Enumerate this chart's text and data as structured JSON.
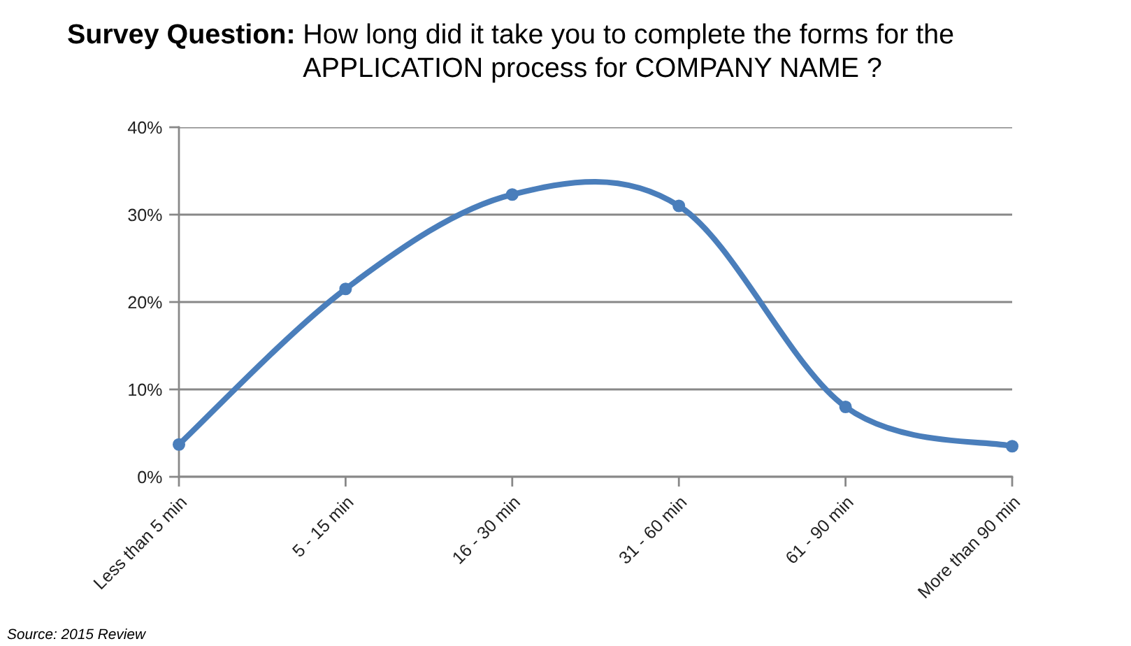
{
  "chart_data": {
    "type": "line",
    "title": "Survey Question:",
    "subtitle": "How long did it take you to complete the forms for the APPLICATION process for COMPANY NAME ?",
    "annotations": [
      "Source: 2015 Review"
    ],
    "categories": [
      "Less than 5 min",
      "5 - 15 min",
      "16 - 30 min",
      "31 - 60 min",
      "61 - 90 min",
      "More than 90 min"
    ],
    "series": [
      {
        "color": "#4a7ebb",
        "values": [
          3.7,
          21.5,
          32.3,
          31.0,
          8.0,
          3.5
        ]
      }
    ],
    "ylim": [
      0,
      40
    ],
    "yticks": [
      {
        "value": 0,
        "label": "0%"
      },
      {
        "value": 10,
        "label": "10%"
      },
      {
        "value": 20,
        "label": "20%"
      },
      {
        "value": 30,
        "label": "30%"
      },
      {
        "value": 40,
        "label": "40%"
      }
    ],
    "grid": "y",
    "marker": "circle",
    "line_style": "solid"
  }
}
